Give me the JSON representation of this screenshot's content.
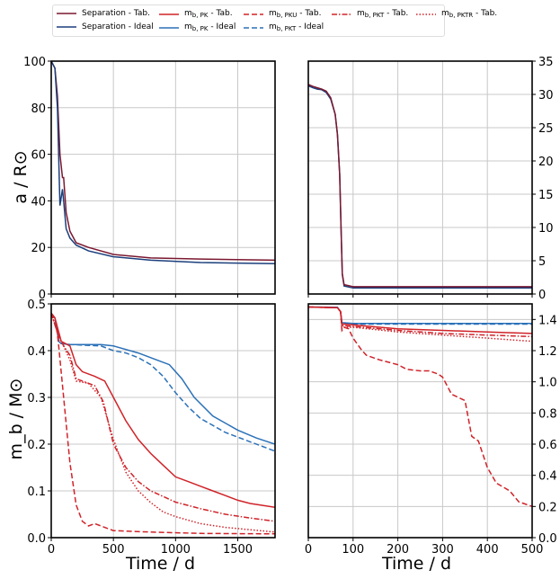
{
  "legend": [
    {
      "label_main": "Separation - Tab.",
      "sub": "",
      "color": "#7b1830",
      "dash": "solid"
    },
    {
      "label_main": "Separation - Ideal",
      "sub": "",
      "color": "#1b3f7c",
      "dash": "solid"
    },
    {
      "label_main": "m",
      "sub": "b, PK",
      "suffix": " - Tab.",
      "color": "#d02329",
      "dash": "solid"
    },
    {
      "label_main": "m",
      "sub": "b, PK",
      "suffix": " - Ideal",
      "color": "#2b71b8",
      "dash": "solid"
    },
    {
      "label_main": "m",
      "sub": "b, PKU",
      "suffix": " - Tab.",
      "color": "#d02329",
      "dash": "dashed"
    },
    {
      "label_main": "m",
      "sub": "b, PKT",
      "suffix": " - Ideal",
      "color": "#2b71b8",
      "dash": "dashed"
    },
    {
      "label_main": "m",
      "sub": "b, PKT",
      "suffix": " - Tab.",
      "color": "#d02329",
      "dash": "dashdot"
    },
    {
      "label_main": "m",
      "sub": "b, PKTR",
      "suffix": " - Tab.",
      "color": "#d02329",
      "dash": "dotted"
    }
  ],
  "axis_titles": {
    "top_y": "a / R⊙",
    "bottom_y": "m_b / M⊙",
    "x_left": "Time / d",
    "x_right": "Time / d"
  },
  "chart_data": [
    {
      "type": "line",
      "panel": "top-left",
      "xlim": [
        0,
        1800
      ],
      "ylim": [
        0,
        100
      ],
      "xticks": [
        0,
        500,
        1000,
        1500
      ],
      "yticks": [
        0,
        20,
        40,
        60,
        80,
        100
      ],
      "ytick_side": "left",
      "show_xticklabels": false,
      "grid": true,
      "series": [
        {
          "name": "Separation - Tab.",
          "color": "#7b1830",
          "dash": "solid",
          "x": [
            0,
            30,
            50,
            70,
            90,
            100,
            120,
            150,
            200,
            300,
            500,
            800,
            1200,
            1800
          ],
          "y": [
            100,
            97,
            85,
            60,
            50,
            50,
            35,
            27,
            22,
            20,
            17,
            15.5,
            15,
            14.5
          ]
        },
        {
          "name": "Separation - Ideal",
          "color": "#1b3f7c",
          "dash": "solid",
          "x": [
            0,
            30,
            50,
            70,
            90,
            100,
            120,
            150,
            200,
            300,
            500,
            800,
            1200,
            1800
          ],
          "y": [
            100,
            97,
            80,
            38,
            45,
            40,
            28,
            24,
            21,
            18.5,
            16,
            14.5,
            13.5,
            13
          ]
        }
      ]
    },
    {
      "type": "line",
      "panel": "top-right",
      "xlim": [
        0,
        500
      ],
      "ylim": [
        0,
        35
      ],
      "xticks": [
        0,
        100,
        200,
        300,
        400,
        500
      ],
      "yticks": [
        0,
        5,
        10,
        15,
        20,
        25,
        30,
        35
      ],
      "ytick_side": "right",
      "show_xticklabels": false,
      "grid": true,
      "series": [
        {
          "name": "Separation - Ideal",
          "color": "#1b3f7c",
          "dash": "solid",
          "x": [
            0,
            10,
            20,
            30,
            40,
            50,
            60,
            65,
            70,
            73,
            76,
            80,
            100,
            500
          ],
          "y": [
            31.3,
            31,
            30.8,
            30.7,
            30.3,
            29.3,
            27,
            24,
            18,
            10,
            3,
            1.2,
            0.9,
            0.9
          ]
        },
        {
          "name": "Separation - Tab.",
          "color": "#7b1830",
          "dash": "solid",
          "x": [
            0,
            10,
            20,
            30,
            40,
            50,
            60,
            65,
            70,
            73,
            76,
            80,
            100,
            500
          ],
          "y": [
            31.5,
            31.2,
            31,
            30.8,
            30.5,
            29.5,
            27,
            24,
            18,
            10,
            3,
            1.4,
            1.1,
            1.1
          ]
        }
      ]
    },
    {
      "type": "line",
      "panel": "bottom-left",
      "xlim": [
        0,
        1800
      ],
      "ylim": [
        0,
        0.5
      ],
      "xticks": [
        0,
        500,
        1000,
        1500
      ],
      "yticks": [
        0,
        0.1,
        0.2,
        0.3,
        0.4,
        0.5
      ],
      "ytick_side": "left",
      "show_xticklabels": true,
      "grid": true,
      "series": [
        {
          "name": "mb,PK - Ideal",
          "color": "#2b71b8",
          "dash": "solid",
          "x": [
            0,
            30,
            60,
            80,
            150,
            400,
            500,
            700,
            850,
            950,
            1050,
            1150,
            1300,
            1500,
            1650,
            1800
          ],
          "y": [
            0.48,
            0.47,
            0.42,
            0.415,
            0.413,
            0.413,
            0.41,
            0.395,
            0.38,
            0.37,
            0.34,
            0.3,
            0.26,
            0.23,
            0.213,
            0.2
          ]
        },
        {
          "name": "mb,PKT - Ideal",
          "color": "#2b71b8",
          "dash": "dashed",
          "x": [
            0,
            30,
            60,
            80,
            150,
            400,
            500,
            600,
            700,
            800,
            900,
            1000,
            1100,
            1200,
            1400,
            1600,
            1800
          ],
          "y": [
            0.48,
            0.47,
            0.42,
            0.415,
            0.413,
            0.41,
            0.4,
            0.395,
            0.385,
            0.37,
            0.345,
            0.31,
            0.28,
            0.255,
            0.225,
            0.205,
            0.185
          ]
        },
        {
          "name": "mb,PK - Tab.",
          "color": "#d02329",
          "dash": "solid",
          "x": [
            0,
            30,
            60,
            80,
            150,
            200,
            250,
            350,
            430,
            500,
            600,
            700,
            800,
            900,
            1000,
            1100,
            1200,
            1300,
            1400,
            1500,
            1600,
            1800
          ],
          "y": [
            0.48,
            0.47,
            0.44,
            0.42,
            0.41,
            0.37,
            0.355,
            0.345,
            0.335,
            0.3,
            0.25,
            0.21,
            0.18,
            0.155,
            0.13,
            0.12,
            0.11,
            0.1,
            0.09,
            0.08,
            0.073,
            0.065
          ]
        },
        {
          "name": "mb,PKU - Tab.",
          "color": "#d02329",
          "dash": "dashed",
          "x": [
            0,
            40,
            60,
            100,
            150,
            200,
            250,
            300,
            350,
            400,
            500,
            800,
            1200,
            1800
          ],
          "y": [
            0.48,
            0.46,
            0.41,
            0.3,
            0.16,
            0.07,
            0.035,
            0.025,
            0.03,
            0.025,
            0.015,
            0.012,
            0.009,
            0.008
          ]
        },
        {
          "name": "mb,PKT - Tab.",
          "color": "#d02329",
          "dash": "dashdot",
          "x": [
            0,
            60,
            100,
            150,
            200,
            250,
            350,
            420,
            500,
            600,
            700,
            800,
            900,
            1000,
            1200,
            1400,
            1600,
            1800
          ],
          "y": [
            0.48,
            0.43,
            0.41,
            0.39,
            0.34,
            0.335,
            0.325,
            0.29,
            0.2,
            0.15,
            0.12,
            0.1,
            0.088,
            0.076,
            0.062,
            0.05,
            0.042,
            0.035
          ]
        },
        {
          "name": "mb,PKTR - Tab.",
          "color": "#d02329",
          "dash": "dotted",
          "x": [
            0,
            60,
            100,
            150,
            200,
            300,
            400,
            500,
            600,
            700,
            800,
            900,
            1000,
            1200,
            1400,
            1600,
            1800
          ],
          "y": [
            0.48,
            0.43,
            0.41,
            0.38,
            0.335,
            0.33,
            0.3,
            0.21,
            0.14,
            0.1,
            0.075,
            0.055,
            0.045,
            0.03,
            0.022,
            0.017,
            0.012
          ]
        }
      ]
    },
    {
      "type": "line",
      "panel": "bottom-right",
      "xlim": [
        0,
        500
      ],
      "ylim": [
        0,
        1.5
      ],
      "xticks": [
        0,
        100,
        200,
        300,
        400,
        500
      ],
      "yticks": [
        0,
        0.2,
        0.4,
        0.6,
        0.8,
        1.0,
        1.2,
        1.4
      ],
      "ytick_side": "right",
      "show_xticklabels": true,
      "grid": true,
      "series": [
        {
          "name": "mb,PK - Ideal",
          "color": "#2b71b8",
          "dash": "solid",
          "x": [
            0,
            65,
            72,
            75,
            100,
            500
          ],
          "y": [
            1.48,
            1.478,
            1.45,
            1.38,
            1.375,
            1.375
          ]
        },
        {
          "name": "mb,PKT - Ideal",
          "color": "#2b71b8",
          "dash": "dashed",
          "x": [
            0,
            65,
            72,
            75,
            100,
            500
          ],
          "y": [
            1.48,
            1.478,
            1.45,
            1.375,
            1.37,
            1.37
          ]
        },
        {
          "name": "mb,PK - Tab.",
          "color": "#d02329",
          "dash": "solid",
          "x": [
            0,
            65,
            72,
            75,
            80,
            100,
            200,
            300,
            400,
            500
          ],
          "y": [
            1.48,
            1.475,
            1.45,
            1.37,
            1.37,
            1.365,
            1.34,
            1.33,
            1.32,
            1.31
          ]
        },
        {
          "name": "mb,PKT - Tab.",
          "color": "#d02329",
          "dash": "dashdot",
          "x": [
            0,
            65,
            72,
            75,
            80,
            100,
            200,
            300,
            400,
            500
          ],
          "y": [
            1.48,
            1.475,
            1.45,
            1.36,
            1.36,
            1.355,
            1.33,
            1.31,
            1.3,
            1.29
          ]
        },
        {
          "name": "mb,PKTR - Tab.",
          "color": "#d02329",
          "dash": "dotted",
          "x": [
            0,
            65,
            72,
            75,
            80,
            100,
            200,
            300,
            400,
            500
          ],
          "y": [
            1.48,
            1.475,
            1.45,
            1.34,
            1.35,
            1.35,
            1.32,
            1.3,
            1.28,
            1.26
          ]
        },
        {
          "name": "mb,PKU - Tab.",
          "color": "#d02329",
          "dash": "dashed",
          "x": [
            0,
            65,
            72,
            75,
            80,
            90,
            100,
            120,
            130,
            160,
            200,
            220,
            250,
            270,
            290,
            300,
            320,
            335,
            350,
            365,
            380,
            400,
            420,
            450,
            470,
            500
          ],
          "y": [
            1.48,
            1.475,
            1.45,
            1.33,
            1.35,
            1.34,
            1.28,
            1.2,
            1.17,
            1.14,
            1.11,
            1.08,
            1.07,
            1.07,
            1.05,
            1.03,
            0.92,
            0.9,
            0.88,
            0.65,
            0.62,
            0.45,
            0.35,
            0.3,
            0.23,
            0.2
          ]
        }
      ]
    }
  ]
}
